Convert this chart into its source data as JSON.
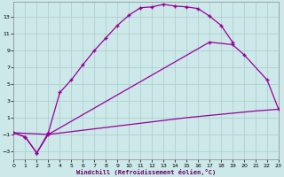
{
  "xlabel": "Windchill (Refroidissement éolien,°C)",
  "xlim": [
    0,
    23
  ],
  "ylim": [
    -4.0,
    14.8
  ],
  "yticks": [
    -3,
    -1,
    1,
    3,
    5,
    7,
    9,
    11,
    13
  ],
  "xticks": [
    0,
    1,
    2,
    3,
    4,
    5,
    6,
    7,
    8,
    9,
    10,
    11,
    12,
    13,
    14,
    15,
    16,
    17,
    18,
    19,
    20,
    21,
    22,
    23
  ],
  "bg_color": "#cce8e8",
  "grid_color": "#aacccc",
  "line_color": "#990099",
  "curve1_x": [
    0,
    1,
    2,
    3,
    4,
    5,
    6,
    7,
    8,
    9,
    10,
    11,
    12,
    13,
    14,
    15,
    16,
    17,
    18,
    19
  ],
  "curve1_y": [
    -0.8,
    -1.3,
    -3.2,
    -0.8,
    4.0,
    5.5,
    7.3,
    9.0,
    10.5,
    12.0,
    13.2,
    14.1,
    14.2,
    14.5,
    14.3,
    14.2,
    14.0,
    13.1,
    12.0,
    10.0
  ],
  "curve2_x": [
    0,
    1,
    2,
    3,
    17,
    19,
    20,
    22,
    23
  ],
  "curve2_y": [
    -0.8,
    -1.3,
    -3.2,
    -1.0,
    10.0,
    9.7,
    8.5,
    5.5,
    2.0
  ],
  "curve3_x": [
    0,
    3,
    6,
    9,
    12,
    15,
    18,
    21,
    23
  ],
  "curve3_y": [
    -0.8,
    -1.0,
    -0.5,
    0.0,
    0.5,
    1.0,
    1.4,
    1.8,
    2.0
  ]
}
